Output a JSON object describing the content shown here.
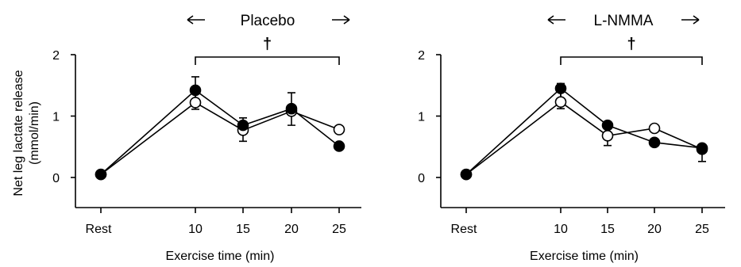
{
  "shared_ylabel": {
    "line1": "Net leg lactate release",
    "line2": "(mmol/min)"
  },
  "chart_data": [
    {
      "type": "line",
      "condition_label": "Placebo",
      "significance_marker": "†",
      "xlabel": "Exercise time (min)",
      "x": [
        0,
        10,
        15,
        20,
        25
      ],
      "x_tick_labels": [
        "Rest",
        "10",
        "15",
        "20",
        "25"
      ],
      "yticks": [
        0,
        1,
        2
      ],
      "ylim": [
        -0.5,
        2
      ],
      "bracket_from": 10,
      "bracket_to": 25,
      "series": [
        {
          "marker": "filled-circle",
          "values": [
            0.05,
            1.42,
            0.85,
            1.12,
            0.51
          ],
          "error": [
            0,
            0.31,
            0.26,
            0.27,
            0
          ]
        },
        {
          "marker": "open-circle",
          "values": [
            0.05,
            1.22,
            0.77,
            1.08,
            0.78
          ],
          "error": [
            0,
            0.42,
            0.2,
            0.3,
            0
          ]
        }
      ],
      "grid": false
    },
    {
      "type": "line",
      "condition_label": "L-NMMA",
      "significance_marker": "†",
      "xlabel": "Exercise time (min)",
      "x": [
        0,
        10,
        15,
        20,
        25
      ],
      "x_tick_labels": [
        "Rest",
        "10",
        "15",
        "20",
        "25"
      ],
      "yticks": [
        0,
        1,
        2
      ],
      "ylim": [
        -0.5,
        2
      ],
      "bracket_from": 10,
      "bracket_to": 25,
      "series": [
        {
          "marker": "filled-circle",
          "values": [
            0.05,
            1.45,
            0.85,
            0.57,
            0.48
          ],
          "error": [
            0,
            0.33,
            0.33,
            0,
            0.22
          ]
        },
        {
          "marker": "open-circle",
          "values": [
            0.05,
            1.23,
            0.68,
            0.8,
            0.46
          ],
          "error": [
            0,
            0.3,
            0.17,
            0,
            0.06
          ]
        }
      ],
      "grid": false
    }
  ]
}
